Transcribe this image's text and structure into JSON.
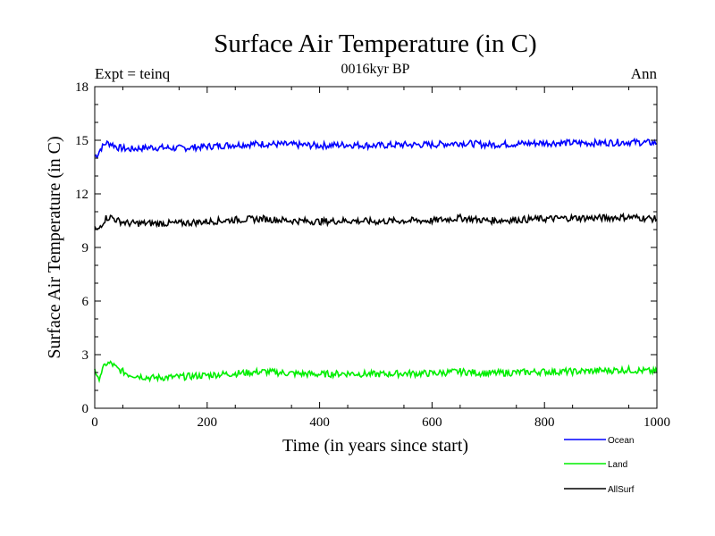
{
  "chart_data": {
    "type": "line",
    "title": "Surface Air Temperature (in C)",
    "subtitle": "0016kyr BP",
    "annotation_left": "Expt = teinq",
    "annotation_right": "Ann",
    "xlabel": "Time (in years since start)",
    "ylabel": "Surface Air Temperature (in C)",
    "xlim": [
      0,
      1000
    ],
    "ylim": [
      0,
      18
    ],
    "xticks": [
      0,
      200,
      400,
      600,
      800,
      1000
    ],
    "yticks": [
      0,
      3,
      6,
      9,
      12,
      15,
      18
    ],
    "grid": false,
    "legend_position": "bottom-right outside",
    "series": [
      {
        "name": "Ocean",
        "color": "#0000ff",
        "x": [
          0,
          5,
          10,
          20,
          30,
          40,
          60,
          80,
          100,
          150,
          200,
          250,
          300,
          350,
          400,
          450,
          500,
          550,
          600,
          650,
          700,
          750,
          800,
          850,
          900,
          950,
          1000
        ],
        "values": [
          14.1,
          14.2,
          14.5,
          14.85,
          14.8,
          14.6,
          14.5,
          14.55,
          14.6,
          14.55,
          14.65,
          14.75,
          14.8,
          14.75,
          14.7,
          14.75,
          14.7,
          14.75,
          14.75,
          14.85,
          14.75,
          14.8,
          14.85,
          14.85,
          14.85,
          14.9,
          14.85
        ]
      },
      {
        "name": "Land",
        "color": "#00ee00",
        "x": [
          0,
          5,
          10,
          20,
          30,
          40,
          60,
          80,
          100,
          150,
          200,
          250,
          300,
          350,
          400,
          450,
          500,
          550,
          600,
          650,
          700,
          750,
          800,
          850,
          900,
          950,
          1000
        ],
        "values": [
          2.3,
          1.5,
          1.9,
          2.5,
          2.5,
          2.2,
          1.9,
          1.8,
          1.7,
          1.75,
          1.85,
          1.95,
          2.05,
          1.95,
          1.9,
          1.95,
          1.9,
          1.95,
          1.95,
          2.05,
          1.95,
          2.0,
          2.05,
          2.05,
          2.1,
          2.15,
          2.05
        ]
      },
      {
        "name": "AllSurf",
        "color": "#000000",
        "x": [
          0,
          5,
          10,
          20,
          30,
          40,
          60,
          80,
          100,
          150,
          200,
          250,
          300,
          350,
          400,
          450,
          500,
          550,
          600,
          650,
          700,
          750,
          800,
          850,
          900,
          950,
          1000
        ],
        "values": [
          10.1,
          9.9,
          10.2,
          10.65,
          10.7,
          10.5,
          10.35,
          10.35,
          10.35,
          10.35,
          10.45,
          10.55,
          10.6,
          10.5,
          10.45,
          10.5,
          10.45,
          10.5,
          10.5,
          10.65,
          10.5,
          10.55,
          10.6,
          10.65,
          10.65,
          10.7,
          10.6
        ]
      }
    ]
  }
}
